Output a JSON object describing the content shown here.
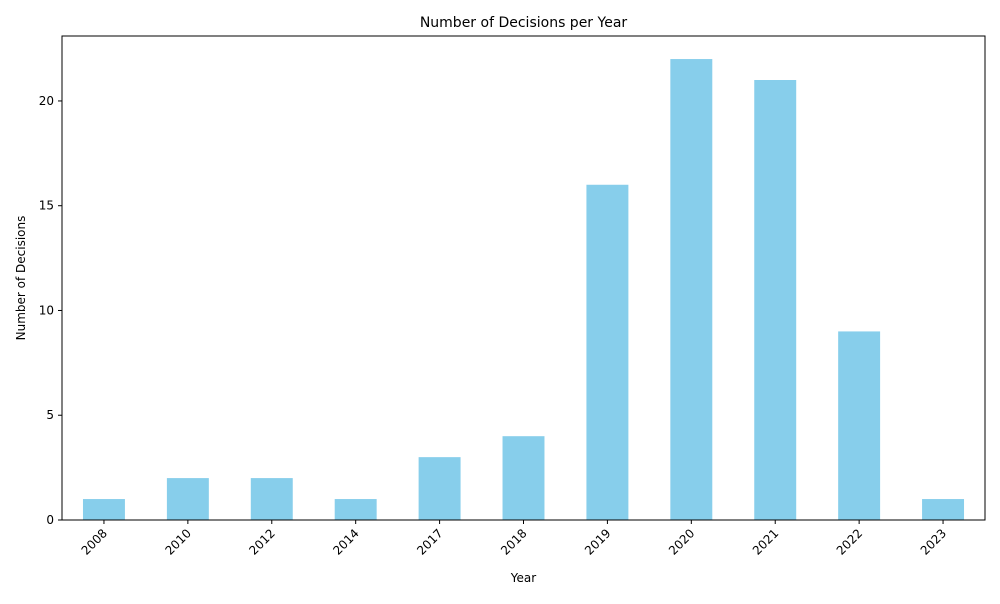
{
  "chart_data": {
    "type": "bar",
    "title": "Number of Decisions per Year",
    "xlabel": "Year",
    "ylabel": "Number of Decisions",
    "categories": [
      "2008",
      "2010",
      "2012",
      "2014",
      "2017",
      "2018",
      "2019",
      "2020",
      "2021",
      "2022",
      "2023"
    ],
    "values": [
      1,
      2,
      2,
      1,
      3,
      4,
      16,
      22,
      21,
      9,
      1
    ],
    "ylim": [
      0,
      23.1
    ],
    "yticks": [
      0,
      5,
      10,
      15,
      20
    ],
    "grid": false,
    "legend": "none",
    "bar_color": "#87CEEB",
    "xtick_rotation": 45
  }
}
